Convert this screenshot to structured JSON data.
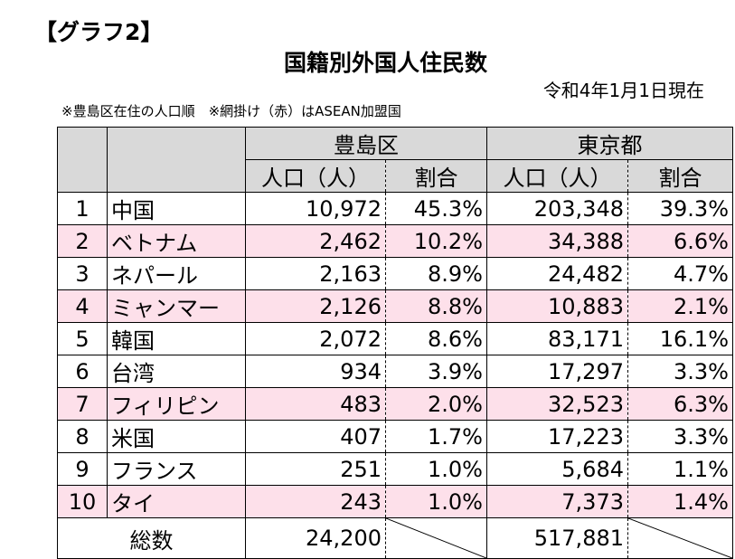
{
  "graph_label": "【グラフ2】",
  "title": "国籍別外国人住民数",
  "as_of": "令和4年1月1日現在",
  "note": "※豊島区在住の人口順　※網掛け（赤）はASEAN加盟国",
  "headers": {
    "toshima": "豊島区",
    "tokyo": "東京都",
    "population": "人口（人）",
    "ratio": "割合"
  },
  "rows": [
    {
      "rank": "1",
      "country": "中国",
      "toshima_pop": "10,972",
      "toshima_ratio": "45.3%",
      "tokyo_pop": "203,348",
      "tokyo_ratio": "39.3%",
      "asean": false
    },
    {
      "rank": "2",
      "country": "ベトナム",
      "toshima_pop": "2,462",
      "toshima_ratio": "10.2%",
      "tokyo_pop": "34,388",
      "tokyo_ratio": "6.6%",
      "asean": true
    },
    {
      "rank": "3",
      "country": "ネパール",
      "toshima_pop": "2,163",
      "toshima_ratio": "8.9%",
      "tokyo_pop": "24,482",
      "tokyo_ratio": "4.7%",
      "asean": false
    },
    {
      "rank": "4",
      "country": "ミャンマー",
      "toshima_pop": "2,126",
      "toshima_ratio": "8.8%",
      "tokyo_pop": "10,883",
      "tokyo_ratio": "2.1%",
      "asean": true
    },
    {
      "rank": "5",
      "country": "韓国",
      "toshima_pop": "2,072",
      "toshima_ratio": "8.6%",
      "tokyo_pop": "83,171",
      "tokyo_ratio": "16.1%",
      "asean": false
    },
    {
      "rank": "6",
      "country": "台湾",
      "toshima_pop": "934",
      "toshima_ratio": "3.9%",
      "tokyo_pop": "17,297",
      "tokyo_ratio": "3.3%",
      "asean": false
    },
    {
      "rank": "7",
      "country": "フィリピン",
      "toshima_pop": "483",
      "toshima_ratio": "2.0%",
      "tokyo_pop": "32,523",
      "tokyo_ratio": "6.3%",
      "asean": true
    },
    {
      "rank": "8",
      "country": "米国",
      "toshima_pop": "407",
      "toshima_ratio": "1.7%",
      "tokyo_pop": "17,223",
      "tokyo_ratio": "3.3%",
      "asean": false
    },
    {
      "rank": "9",
      "country": "フランス",
      "toshima_pop": "251",
      "toshima_ratio": "1.0%",
      "tokyo_pop": "5,684",
      "tokyo_ratio": "1.1%",
      "asean": false
    },
    {
      "rank": "10",
      "country": "タイ",
      "toshima_pop": "243",
      "toshima_ratio": "1.0%",
      "tokyo_pop": "7,373",
      "tokyo_ratio": "1.4%",
      "asean": true
    }
  ],
  "total": {
    "label": "総数",
    "toshima_pop": "24,200",
    "tokyo_pop": "517,881"
  },
  "colors": {
    "header_bg": "#d9d9d9",
    "asean_row_bg": "#fde0ea"
  }
}
